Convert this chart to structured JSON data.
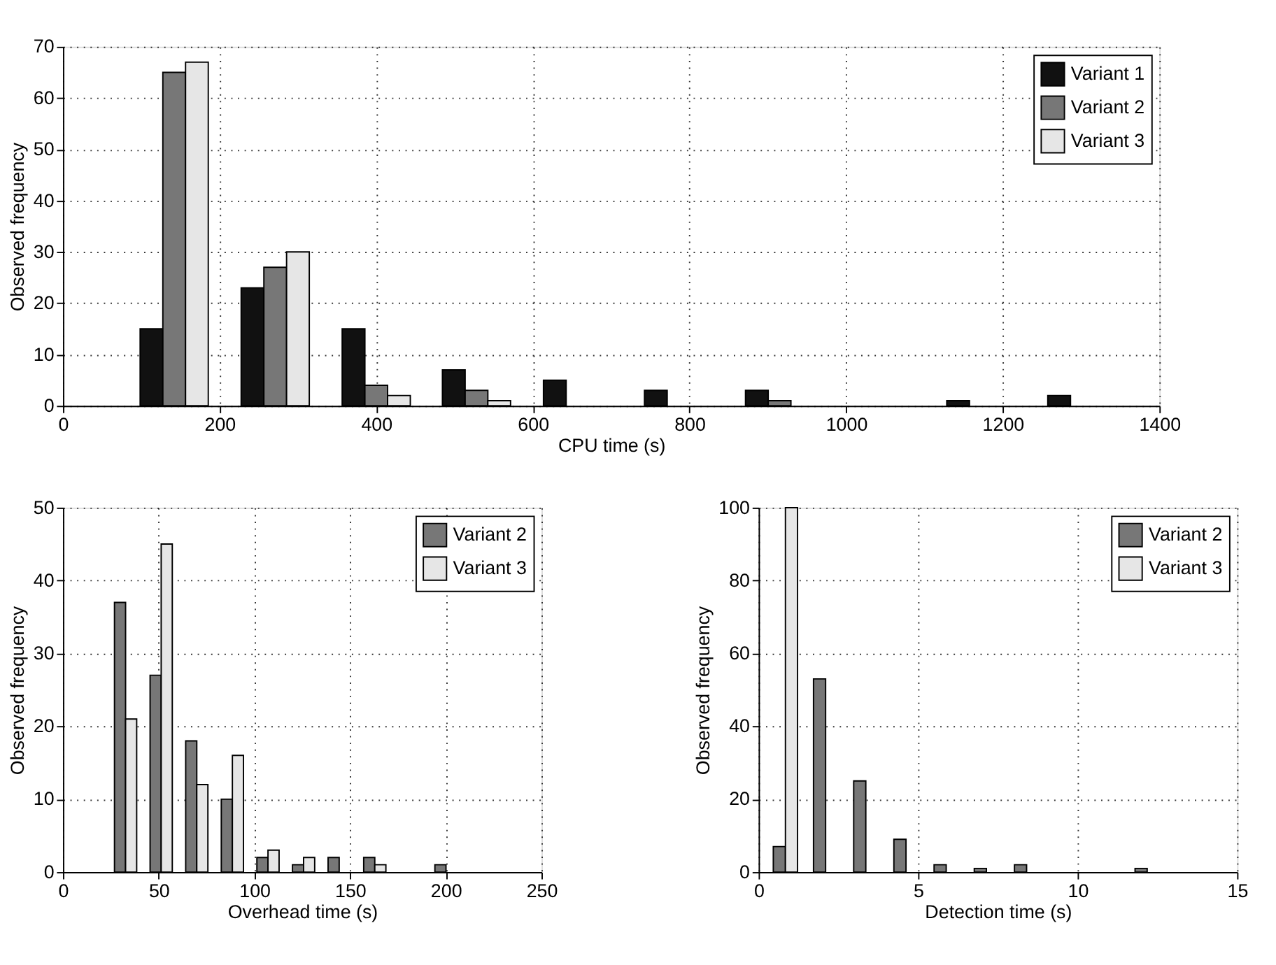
{
  "chart_data": [
    {
      "type": "bar",
      "xlabel": "CPU time (s)",
      "ylabel": "Observed frequency",
      "xlim": [
        0,
        1400
      ],
      "xticks": [
        0,
        200,
        400,
        600,
        800,
        1000,
        1200,
        1400
      ],
      "ylim": [
        0,
        70
      ],
      "yticks": [
        0,
        10,
        20,
        30,
        40,
        50,
        60,
        70
      ],
      "grid": true,
      "legend": "top right",
      "series": [
        {
          "name": "Variant 1",
          "color": "#111111",
          "x": [
            113,
            242,
            371,
            499,
            628,
            757,
            886,
            1014,
            1143,
            1272
          ],
          "values": [
            15,
            23,
            15,
            7,
            5,
            3,
            3,
            null,
            1,
            2
          ]
        },
        {
          "name": "Variant 2",
          "color": "#777777",
          "x": [
            142,
            271,
            400,
            528,
            657,
            786,
            915
          ],
          "values": [
            65,
            27,
            4,
            3,
            null,
            null,
            1
          ]
        },
        {
          "name": "Variant 3",
          "color": "#e6e6e6",
          "x": [
            171,
            300,
            429,
            557
          ],
          "values": [
            67,
            30,
            2,
            1
          ]
        }
      ]
    },
    {
      "type": "bar",
      "xlabel": "Overhead time (s)",
      "ylabel": "Observed frequency",
      "xlim": [
        0,
        250
      ],
      "xticks": [
        0,
        50,
        100,
        150,
        200,
        250
      ],
      "ylim": [
        0,
        50
      ],
      "yticks": [
        0,
        10,
        20,
        30,
        40,
        50
      ],
      "grid": true,
      "legend": "top right",
      "series": [
        {
          "name": "Variant 2",
          "color": "#777777",
          "x": [
            29.8,
            48.4,
            67,
            85.6,
            104.2,
            122.8,
            141.4,
            160,
            178.6,
            197.2
          ],
          "values": [
            37,
            27,
            18,
            10,
            2,
            1,
            2,
            2,
            null,
            1
          ]
        },
        {
          "name": "Variant 3",
          "color": "#e6e6e6",
          "x": [
            35.6,
            54.2,
            72.8,
            91.4,
            110,
            128.6,
            147.2,
            165.8
          ],
          "values": [
            21,
            45,
            12,
            16,
            3,
            2,
            null,
            1
          ]
        }
      ]
    },
    {
      "type": "bar",
      "xlabel": "Detection time (s)",
      "ylabel": "Observed frequency",
      "xlim": [
        0,
        15
      ],
      "xticks": [
        0,
        5,
        10,
        15
      ],
      "ylim": [
        0,
        100
      ],
      "yticks": [
        0,
        20,
        40,
        60,
        80,
        100
      ],
      "grid": true,
      "legend": "top right",
      "series": [
        {
          "name": "Variant 2",
          "color": "#777777",
          "x": [
            0.65,
            1.91,
            3.17,
            4.43,
            5.69,
            6.95,
            8.21,
            9.47,
            10.73,
            11.99
          ],
          "values": [
            7,
            53,
            25,
            9,
            2,
            1,
            2,
            null,
            null,
            1
          ]
        },
        {
          "name": "Variant 3",
          "color": "#e6e6e6",
          "x": [
            1.03
          ],
          "values": [
            100
          ]
        }
      ]
    }
  ]
}
